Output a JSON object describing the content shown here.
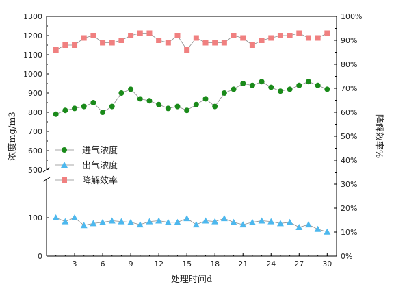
{
  "chart_data": {
    "type": "line",
    "xlabel": "处理时间d",
    "ylabel_left": "浓度mg/m3",
    "ylabel_right": "降解效率%",
    "x_ticks": [
      3,
      6,
      9,
      12,
      15,
      18,
      21,
      24,
      27,
      30
    ],
    "x_range": [
      0,
      31
    ],
    "left_axis": {
      "broken": true,
      "lower_range": [
        0,
        200
      ],
      "lower_ticks": [
        0,
        100
      ],
      "upper_range": [
        500,
        1300
      ],
      "upper_ticks": [
        500,
        600,
        700,
        800,
        900,
        1000,
        1100,
        1200,
        1300
      ]
    },
    "right_axis": {
      "range": [
        0,
        100
      ],
      "ticks": [
        "0%",
        "10%",
        "20%",
        "30%",
        "40%",
        "50%",
        "60%",
        "70%",
        "80%",
        "90%",
        "100%"
      ]
    },
    "legend_position": "middle-left",
    "x": [
      1,
      2,
      3,
      4,
      5,
      6,
      7,
      8,
      9,
      10,
      11,
      12,
      13,
      14,
      15,
      16,
      17,
      18,
      19,
      20,
      21,
      22,
      23,
      24,
      25,
      26,
      27,
      28,
      29,
      30
    ],
    "series": [
      {
        "name": "进气浓度",
        "axis": "left",
        "marker": "circle",
        "color": "#1a8a1a",
        "values": [
          790,
          810,
          820,
          830,
          850,
          800,
          830,
          900,
          920,
          870,
          860,
          840,
          820,
          830,
          810,
          840,
          870,
          830,
          900,
          920,
          950,
          940,
          960,
          930,
          910,
          920,
          940,
          960,
          940,
          920
        ]
      },
      {
        "name": "出气浓度",
        "axis": "left",
        "marker": "triangle",
        "color": "#4db8ee",
        "values": [
          100,
          90,
          100,
          80,
          85,
          88,
          92,
          90,
          88,
          82,
          90,
          92,
          88,
          88,
          98,
          82,
          92,
          90,
          98,
          88,
          82,
          88,
          92,
          90,
          85,
          88,
          75,
          82,
          70,
          63
        ]
      },
      {
        "name": "降解效率",
        "axis": "right",
        "marker": "square",
        "color": "#f08080",
        "values": [
          86,
          88,
          88,
          91,
          92,
          89,
          89,
          90,
          92,
          93,
          93,
          90,
          89,
          92,
          86,
          91,
          89,
          89,
          89,
          92,
          91,
          88,
          90,
          91,
          92,
          92,
          93,
          91,
          91,
          93
        ]
      }
    ]
  }
}
